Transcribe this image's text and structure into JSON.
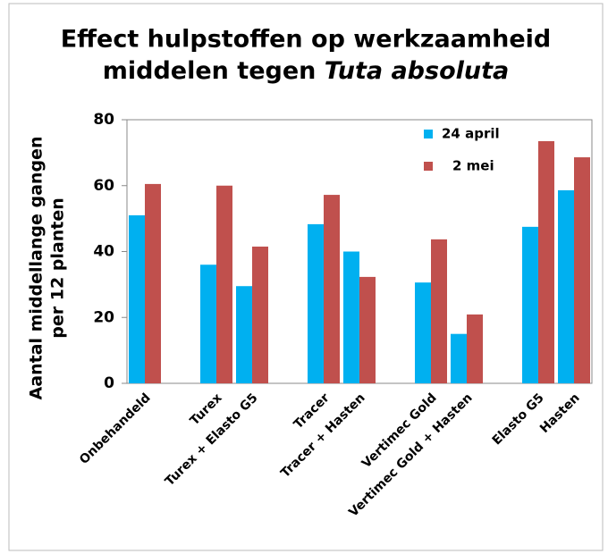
{
  "chart_data": {
    "type": "bar",
    "title": {
      "line1": "Effect hulpstoffen op werkzaamheid",
      "line2": "middelen tegen",
      "line2_italic": "Tuta absoluta"
    },
    "y_label": [
      "Aantal middellange gangen",
      "per 12 planten"
    ],
    "categories": [
      "Onbehandeld",
      null,
      "Turex",
      "Turex + Elasto G5",
      null,
      "Tracer",
      "Tracer + Hasten",
      null,
      "Vertimec Gold",
      "Vertimec Gold + Hasten",
      null,
      "Elasto G5",
      "Hasten"
    ],
    "series": [
      {
        "name": "24 april",
        "color": "#00b0f0",
        "values": [
          51,
          null,
          36,
          29.5,
          null,
          48.3,
          40,
          null,
          30.6,
          15,
          null,
          47.5,
          58.6
        ]
      },
      {
        "name": "2 mei",
        "color": "#c0504d",
        "values": [
          60.5,
          null,
          60,
          41.5,
          null,
          57.2,
          32.3,
          null,
          43.7,
          20.9,
          null,
          73.5,
          68.6
        ]
      }
    ],
    "ylim": [
      0,
      80
    ],
    "yticks": [
      0,
      20,
      40,
      60,
      80
    ],
    "grid": false,
    "legend": "upper right"
  }
}
